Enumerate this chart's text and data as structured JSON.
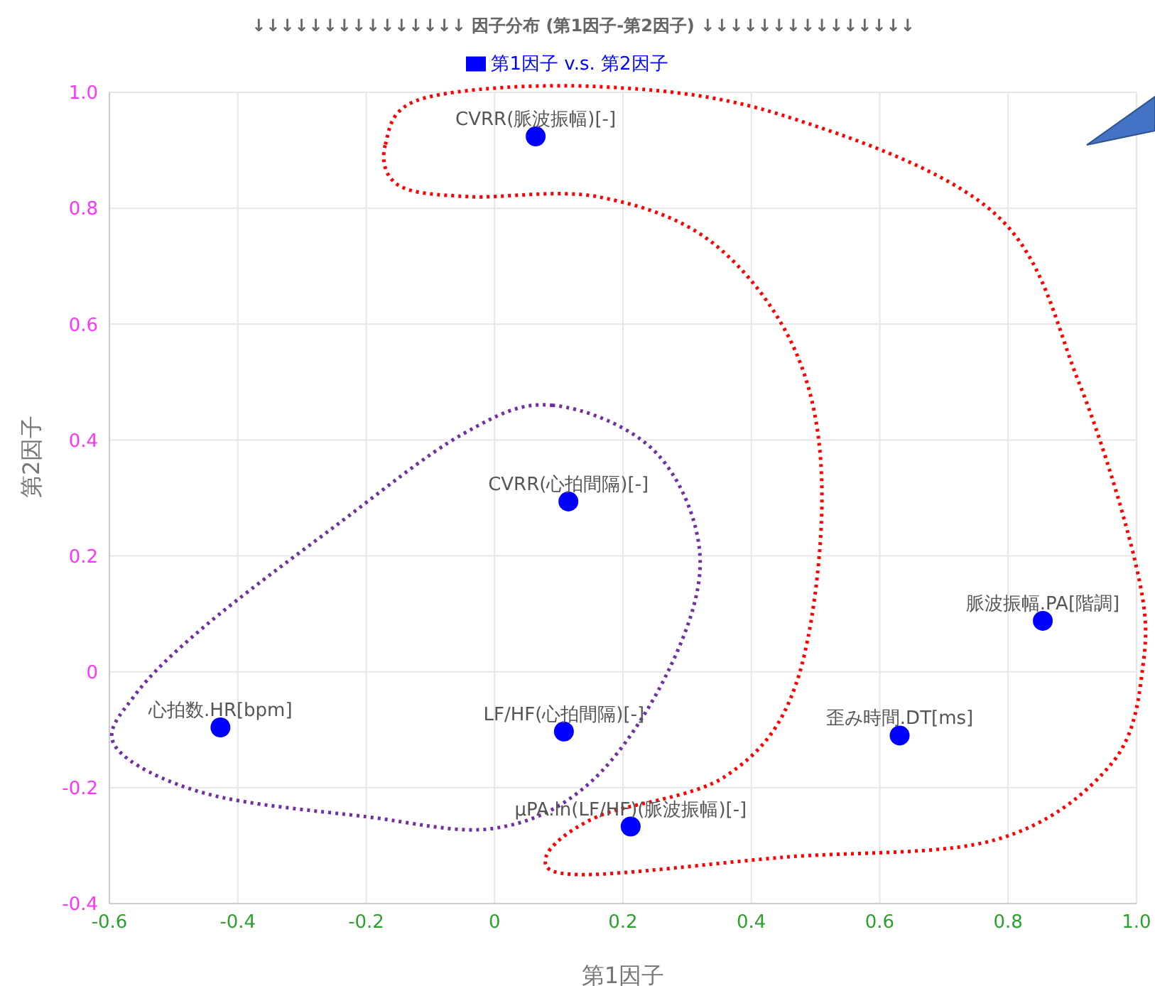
{
  "chart_data": {
    "type": "scatter",
    "title": "↓↓↓↓↓↓↓↓↓↓↓↓↓↓↓ 因子分布 (第1因子-第2因子) ↓↓↓↓↓↓↓↓↓↓↓↓↓↓↓",
    "xlabel": "第1因子",
    "ylabel": "第2因子",
    "series": [
      {
        "name": "第1因子 v.s. 第2因子",
        "color": "#0000ff",
        "x": [
          0.064,
          0.115,
          0.854,
          0.631,
          -0.427,
          0.108,
          0.212
        ],
        "values": [
          0.924,
          0.294,
          0.088,
          -0.11,
          -0.096,
          -0.103,
          -0.267
        ]
      }
    ],
    "xlim": [
      -0.6,
      1
    ],
    "ylim": [
      -0.4,
      1
    ],
    "xticks": [
      -0.6,
      -0.4,
      -0.2,
      0,
      0.2,
      0.4,
      0.6,
      0.8,
      {
        "value": 1,
        "label": "1.0"
      }
    ],
    "yticks": [
      -0.4,
      -0.2,
      0,
      0.2,
      0.4,
      0.6,
      0.8,
      {
        "value": 1,
        "label": "1.0"
      }
    ],
    "grid": true,
    "legend": "top",
    "marker": "circle",
    "annotations": [
      {
        "text": "CVRR(脈波振幅)[-]",
        "x": 0.064,
        "y": 0.924
      },
      {
        "text": "CVRR(心拍間隔)[-]",
        "x": 0.115,
        "y": 0.294
      },
      {
        "text": "脈波振幅.PA[階調]",
        "x": 0.854,
        "y": 0.088
      },
      {
        "text": "歪み時間.DT[ms]",
        "x": 0.631,
        "y": -0.11
      },
      {
        "text": "心拍数.HR[bpm]",
        "x": -0.427,
        "y": -0.096
      },
      {
        "text": "LF/HF(心拍間隔)[-]",
        "x": 0.108,
        "y": -0.103
      },
      {
        "text": "μPA.ln(LF/HF)(脈波振幅)[-]",
        "x": 0.212,
        "y": -0.267
      }
    ]
  }
}
